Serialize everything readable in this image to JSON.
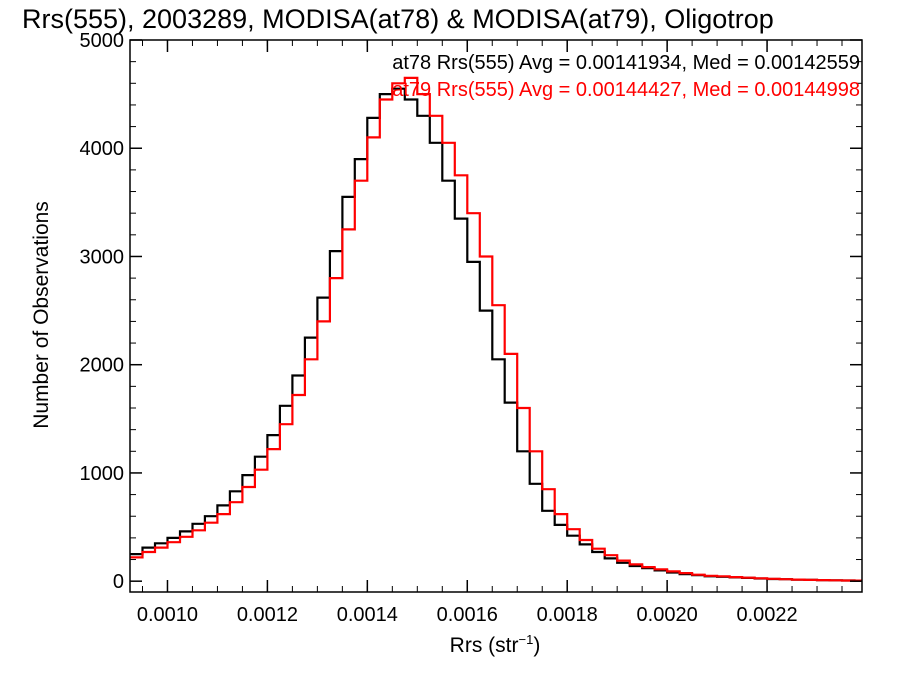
{
  "chart_data": {
    "type": "line",
    "step": true,
    "title": "Rrs(555), 2003289, MODISA(at78) & MODISA(at79), Oligotrop",
    "xlabel": "Rrs (str",
    "xlabel_sup": "−1",
    "xlabel_suffix": ")",
    "ylabel": "Number of Observations",
    "xlim": [
      0.000925,
      0.00239
    ],
    "ylim": [
      -100,
      5000
    ],
    "x_ticks": [
      {
        "value": 0.001,
        "label": "0.0010"
      },
      {
        "value": 0.0012,
        "label": "0.0012"
      },
      {
        "value": 0.0014,
        "label": "0.0014"
      },
      {
        "value": 0.0016,
        "label": "0.0016"
      },
      {
        "value": 0.0018,
        "label": "0.0018"
      },
      {
        "value": 0.002,
        "label": "0.0020"
      },
      {
        "value": 0.0022,
        "label": "0.0022"
      }
    ],
    "y_ticks": [
      {
        "value": 0,
        "label": "0"
      },
      {
        "value": 1000,
        "label": "1000"
      },
      {
        "value": 2000,
        "label": "2000"
      },
      {
        "value": 3000,
        "label": "3000"
      },
      {
        "value": 4000,
        "label": "4000"
      },
      {
        "value": 5000,
        "label": "5000"
      }
    ],
    "legend_placement": "top-right",
    "series": [
      {
        "name": "at78 Rrs(555) Avg = 0.00141934, Med = 0.00142559",
        "color": "#000000",
        "x": [
          0.000925,
          0.00095,
          0.000975,
          0.001,
          0.001025,
          0.00105,
          0.001075,
          0.0011,
          0.001125,
          0.00115,
          0.001175,
          0.0012,
          0.001225,
          0.00125,
          0.001275,
          0.0013,
          0.001325,
          0.00135,
          0.001375,
          0.0014,
          0.001425,
          0.00145,
          0.001475,
          0.0015,
          0.001525,
          0.00155,
          0.001575,
          0.0016,
          0.001625,
          0.00165,
          0.001675,
          0.0017,
          0.001725,
          0.00175,
          0.001775,
          0.0018,
          0.001825,
          0.00185,
          0.001875,
          0.0019,
          0.001925,
          0.00195,
          0.001975,
          0.002,
          0.002025,
          0.00205,
          0.002075,
          0.0021,
          0.002125,
          0.00215,
          0.002175,
          0.0022,
          0.002225,
          0.00225,
          0.002275,
          0.0023,
          0.002325,
          0.00235,
          0.002375,
          0.00239
        ],
        "y": [
          250,
          310,
          350,
          400,
          460,
          530,
          600,
          700,
          830,
          980,
          1150,
          1350,
          1620,
          1900,
          2250,
          2620,
          3050,
          3550,
          3900,
          4280,
          4500,
          4550,
          4450,
          4300,
          4050,
          3700,
          3350,
          2950,
          2500,
          2050,
          1650,
          1200,
          900,
          650,
          520,
          420,
          340,
          270,
          210,
          170,
          140,
          120,
          100,
          80,
          65,
          55,
          45,
          40,
          35,
          30,
          25,
          20,
          18,
          15,
          12,
          10,
          8,
          6,
          5,
          5
        ]
      },
      {
        "name": "at79 Rrs(555) Avg = 0.00144427, Med = 0.00144998",
        "color": "#ff0000",
        "x": [
          0.000925,
          0.00095,
          0.000975,
          0.001,
          0.001025,
          0.00105,
          0.001075,
          0.0011,
          0.001125,
          0.00115,
          0.001175,
          0.0012,
          0.001225,
          0.00125,
          0.001275,
          0.0013,
          0.001325,
          0.00135,
          0.001375,
          0.0014,
          0.001425,
          0.00145,
          0.001475,
          0.0015,
          0.001525,
          0.00155,
          0.001575,
          0.0016,
          0.001625,
          0.00165,
          0.001675,
          0.0017,
          0.001725,
          0.00175,
          0.001775,
          0.0018,
          0.001825,
          0.00185,
          0.001875,
          0.0019,
          0.001925,
          0.00195,
          0.001975,
          0.002,
          0.002025,
          0.00205,
          0.002075,
          0.0021,
          0.002125,
          0.00215,
          0.002175,
          0.0022,
          0.002225,
          0.00225,
          0.002275,
          0.0023,
          0.002325,
          0.00235,
          0.002375,
          0.00239
        ],
        "y": [
          220,
          270,
          310,
          360,
          410,
          470,
          540,
          620,
          730,
          870,
          1030,
          1220,
          1450,
          1720,
          2050,
          2400,
          2800,
          3250,
          3700,
          4100,
          4450,
          4600,
          4650,
          4500,
          4300,
          4050,
          3750,
          3400,
          3000,
          2550,
          2100,
          1600,
          1200,
          850,
          620,
          480,
          380,
          300,
          240,
          190,
          155,
          130,
          110,
          90,
          75,
          60,
          50,
          45,
          38,
          32,
          27,
          22,
          18,
          15,
          12,
          10,
          8,
          6,
          5,
          5
        ]
      }
    ]
  }
}
